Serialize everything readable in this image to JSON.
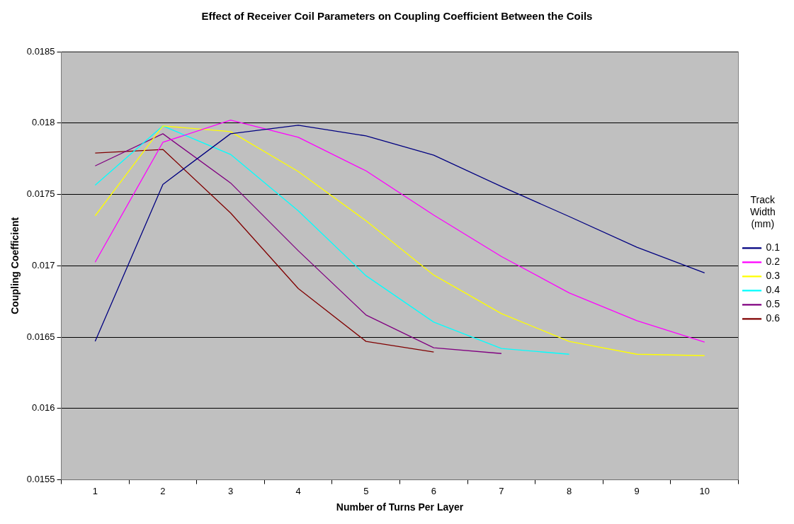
{
  "chart_data": {
    "type": "line",
    "title": "Effect of Receiver Coil Parameters on Coupling Coefficient Between the Coils",
    "xlabel": "Number of Turns Per Layer",
    "ylabel": "Coupling Coefficient",
    "legend_title": "Track Width (mm)",
    "categories": [
      "1",
      "2",
      "3",
      "4",
      "5",
      "6",
      "7",
      "8",
      "9",
      "10"
    ],
    "series": [
      {
        "name": "0.1",
        "color": "#000080",
        "values": [
          0.01647,
          0.01757,
          0.017925,
          0.017985,
          0.01791,
          0.017775,
          0.017555,
          0.017345,
          0.01713,
          0.01695
        ]
      },
      {
        "name": "0.2",
        "color": "#ff00ff",
        "values": [
          0.017025,
          0.017865,
          0.01802,
          0.0179,
          0.017665,
          0.017355,
          0.017065,
          0.01681,
          0.016615,
          0.016465
        ]
      },
      {
        "name": "0.3",
        "color": "#ffff00",
        "values": [
          0.01735,
          0.01798,
          0.01794,
          0.01766,
          0.017315,
          0.016935,
          0.016665,
          0.01647,
          0.01638,
          0.01637
        ]
      },
      {
        "name": "0.4",
        "color": "#00ffff",
        "values": [
          0.017565,
          0.01798,
          0.01778,
          0.017385,
          0.01693,
          0.016605,
          0.01642,
          0.01638,
          null,
          null
        ]
      },
      {
        "name": "0.5",
        "color": "#800080",
        "values": [
          0.0177,
          0.017925,
          0.01758,
          0.017105,
          0.016655,
          0.016425,
          0.016385,
          null,
          null,
          null
        ]
      },
      {
        "name": "0.6",
        "color": "#800000",
        "values": [
          0.01779,
          0.017815,
          0.01737,
          0.01684,
          0.01647,
          0.016395,
          null,
          null,
          null,
          null
        ]
      }
    ],
    "ylim": [
      0.0155,
      0.0185
    ],
    "yticks": [
      0.0155,
      0.016,
      0.0165,
      0.017,
      0.0175,
      0.018,
      0.0185
    ],
    "grid": "y",
    "legend": "right",
    "marker": "none",
    "line_style": "solid"
  }
}
